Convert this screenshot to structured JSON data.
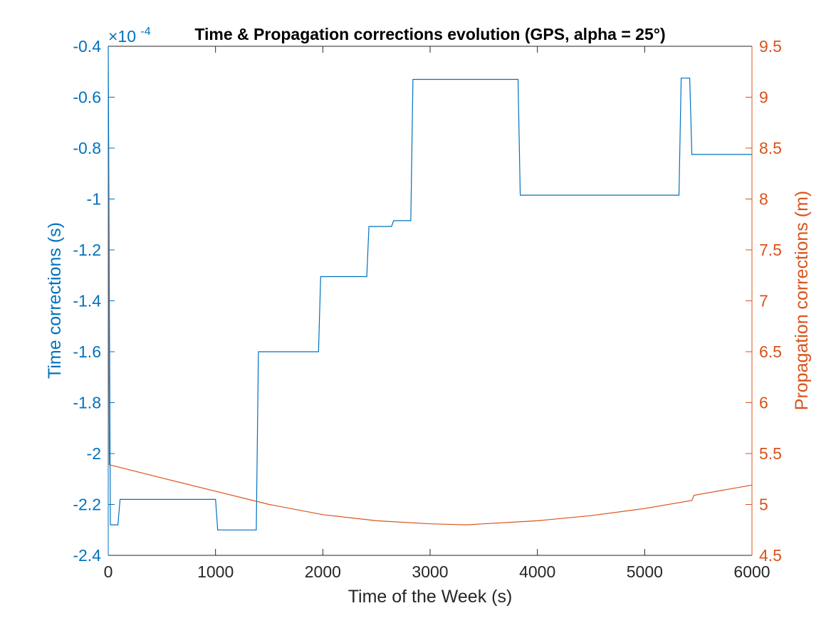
{
  "chart_data": {
    "type": "line",
    "title": "Time & Propagation corrections evolution (GPS, alpha = 25°)",
    "xlabel": "Time of the Week (s)",
    "xlim": [
      0,
      6000
    ],
    "x_ticks": [
      "0",
      "1000",
      "2000",
      "3000",
      "4000",
      "5000",
      "6000"
    ],
    "left_axis": {
      "label": "Time corrections (s)",
      "multiplier": "×10",
      "exponent": "-4",
      "ylim": [
        -2.4,
        -0.4
      ],
      "ticks": [
        "-2.4",
        "-2.2",
        "-2",
        "-1.8",
        "-1.6",
        "-1.4",
        "-1.2",
        "-1",
        "-0.8",
        "-0.6",
        "-0.4"
      ]
    },
    "right_axis": {
      "label": "Propagation corrections (m)",
      "ylim": [
        4.5,
        9.5
      ],
      "ticks": [
        "4.5",
        "5",
        "5.5",
        "6",
        "6.5",
        "7",
        "7.5",
        "8",
        "8.5",
        "9",
        "9.5"
      ]
    },
    "series": [
      {
        "axis": "left",
        "color": "#0072BD",
        "points": [
          [
            0,
            -0.4
          ],
          [
            20,
            -2.28
          ],
          [
            90,
            -2.28
          ],
          [
            110,
            -2.18
          ],
          [
            1000,
            -2.18
          ],
          [
            1020,
            -2.3
          ],
          [
            1380,
            -2.3
          ],
          [
            1400,
            -1.6
          ],
          [
            1960,
            -1.6
          ],
          [
            1980,
            -1.305
          ],
          [
            2410,
            -1.305
          ],
          [
            2430,
            -1.108
          ],
          [
            2640,
            -1.108
          ],
          [
            2660,
            -1.085
          ],
          [
            2820,
            -1.085
          ],
          [
            2840,
            -0.53
          ],
          [
            3820,
            -0.53
          ],
          [
            3840,
            -0.985
          ],
          [
            5320,
            -0.985
          ],
          [
            5340,
            -0.525
          ],
          [
            5420,
            -0.525
          ],
          [
            5440,
            -0.825
          ],
          [
            6000,
            -0.825
          ]
        ]
      },
      {
        "axis": "right",
        "color": "#D95319",
        "points": [
          [
            0,
            8.55
          ],
          [
            10,
            5.39
          ],
          [
            500,
            5.26
          ],
          [
            1000,
            5.13
          ],
          [
            1500,
            5.0
          ],
          [
            2000,
            4.9
          ],
          [
            2500,
            4.84
          ],
          [
            3000,
            4.81
          ],
          [
            3340,
            4.8
          ],
          [
            3500,
            4.81
          ],
          [
            4000,
            4.84
          ],
          [
            4500,
            4.89
          ],
          [
            5000,
            4.96
          ],
          [
            5440,
            5.04
          ],
          [
            5460,
            5.09
          ],
          [
            6000,
            5.19
          ]
        ]
      }
    ]
  }
}
